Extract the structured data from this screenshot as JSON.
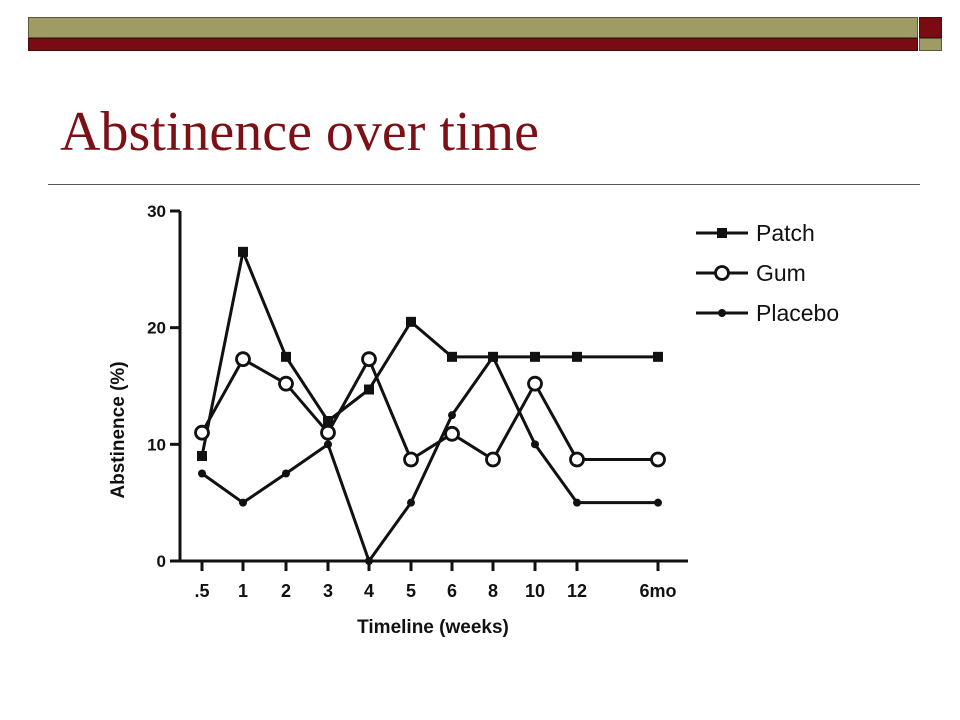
{
  "slide": {
    "title": "Abstinence over time"
  },
  "chart_data": {
    "type": "line",
    "title": "",
    "xlabel": "Timeline (weeks)",
    "ylabel": "Abstinence (%)",
    "categories": [
      ".5",
      "1",
      "2",
      "3",
      "4",
      "5",
      "6",
      "8",
      "10",
      "12",
      "6mo"
    ],
    "ylim": [
      0,
      30
    ],
    "yticks": [
      "0",
      "10",
      "20",
      "30"
    ],
    "grid": false,
    "legend_position": "top-right",
    "series": [
      {
        "name": "Patch",
        "marker": "square",
        "values": [
          9,
          26.5,
          17.5,
          12,
          14.7,
          20.5,
          17.5,
          17.5,
          17.5,
          17.5,
          17.5
        ]
      },
      {
        "name": "Gum",
        "marker": "open-circle",
        "values": [
          11,
          17.3,
          15.2,
          11,
          17.3,
          8.7,
          10.9,
          8.7,
          15.2,
          8.7,
          8.7
        ]
      },
      {
        "name": "Placebo",
        "marker": "filled-circle",
        "values": [
          7.5,
          5,
          7.5,
          10,
          0,
          5,
          12.5,
          17.5,
          10,
          5,
          5
        ]
      }
    ]
  }
}
